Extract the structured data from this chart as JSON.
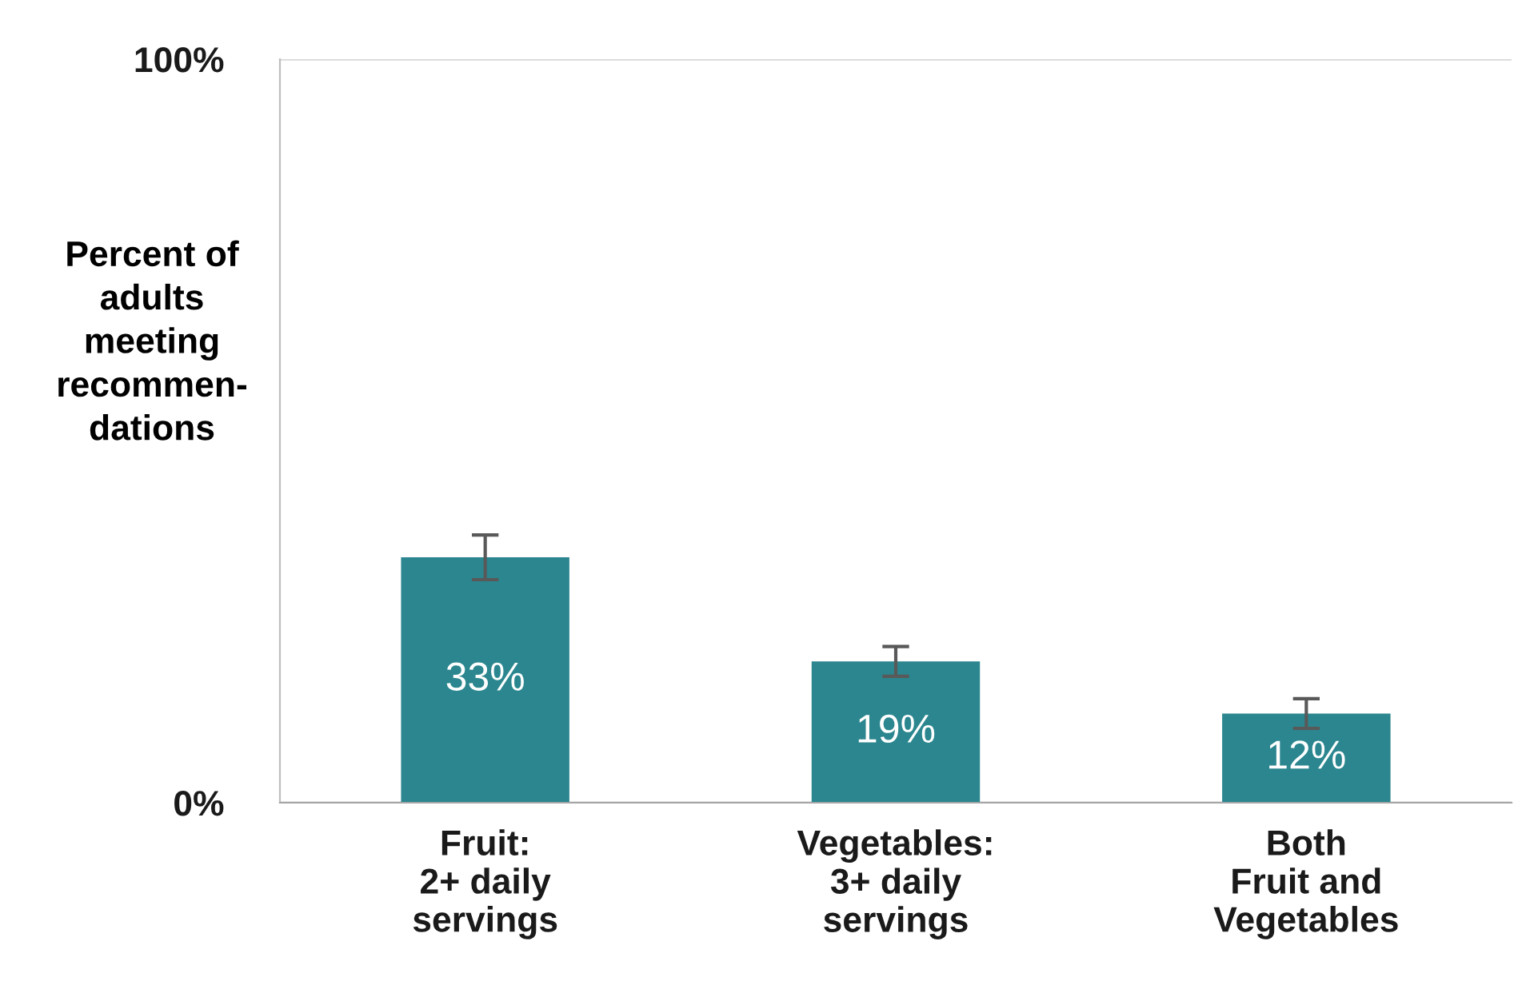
{
  "chart_data": {
    "type": "bar",
    "ylabel": "Percent of\nadults\nmeeting\nrecommen-\ndations",
    "categories": [
      "Fruit:\n2+ daily\nservings",
      "Vegetables:\n3+ daily\nservings",
      "Both\nFruit and\nVegetables"
    ],
    "values": [
      33,
      19,
      12
    ],
    "color": "#2b868f",
    "errors": [
      [
        30,
        36
      ],
      [
        17,
        21
      ],
      [
        10,
        14
      ]
    ],
    "value_labels": [
      "33%",
      "19%",
      "12%"
    ],
    "ylim": [
      0,
      100
    ],
    "yticks": [
      {
        "value": 0,
        "label": "0%"
      },
      {
        "value": 100,
        "label": "100%"
      }
    ],
    "grid": "y",
    "legend": false
  }
}
